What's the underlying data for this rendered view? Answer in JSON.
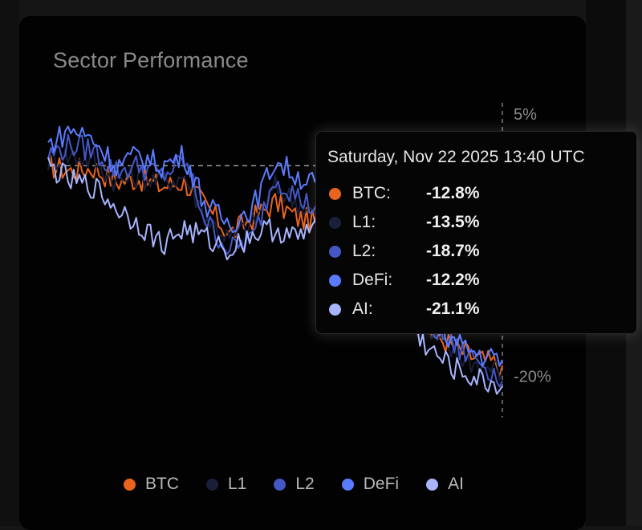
{
  "panel": {
    "title": "Sector Performance"
  },
  "colors": {
    "background": "#020202",
    "axis_text": "#8a8a8a",
    "btc": "#e8641c",
    "l1": "#1a1f3a",
    "l2": "#4457c6",
    "defi": "#5a7bff",
    "ai": "#a8b4ff"
  },
  "legend": [
    {
      "label": "BTC",
      "color": "#e8641c"
    },
    {
      "label": "L1",
      "color": "#1a1f3a"
    },
    {
      "label": "L2",
      "color": "#4457c6"
    },
    {
      "label": "DeFi",
      "color": "#5a7bff"
    },
    {
      "label": "AI",
      "color": "#a8b4ff"
    }
  ],
  "tooltip": {
    "date": "Saturday, Nov 22 2025 13:40 UTC",
    "rows": [
      {
        "name": "BTC:",
        "value": "-12.8%",
        "color": "#e8641c"
      },
      {
        "name": "L1:",
        "value": "-13.5%",
        "color": "#1a1f3a"
      },
      {
        "name": "L2:",
        "value": "-18.7%",
        "color": "#4457c6"
      },
      {
        "name": "DeFi:",
        "value": "-12.2%",
        "color": "#5a7bff"
      },
      {
        "name": "AI:",
        "value": "-21.1%",
        "color": "#a8b4ff"
      }
    ]
  },
  "chart_data": {
    "type": "line",
    "title": "Sector Performance",
    "xlabel": "",
    "ylabel": "",
    "ylim": [
      -24,
      6
    ],
    "y_ticks": [
      {
        "value": 5,
        "label": "5%"
      },
      {
        "value": -20,
        "label": "-20%"
      }
    ],
    "zero_line": true,
    "crosshair": true,
    "legend_position": "bottom",
    "x": [
      0,
      1,
      2,
      3,
      4,
      5,
      6,
      7,
      8,
      9,
      10,
      11,
      12,
      13,
      14,
      15,
      16,
      17,
      18,
      19,
      20
    ],
    "series": [
      {
        "name": "BTC",
        "color": "#e8641c",
        "values": [
          0,
          -0.5,
          -0.2,
          -1.5,
          -1.2,
          -2,
          -1.5,
          -4,
          -6.5,
          -5,
          -3.5,
          -5,
          -5.5,
          -6,
          -7.5,
          -10,
          -14,
          -16,
          -17.5,
          -18.5,
          -19
        ]
      },
      {
        "name": "L1",
        "color": "#1a1f3a",
        "values": [
          0.5,
          1,
          0.5,
          -1.5,
          -1,
          -1.5,
          -1,
          -5,
          -7,
          -5.5,
          -2,
          -3.5,
          -5,
          -6.5,
          -8,
          -10.5,
          -14.5,
          -16.5,
          -18,
          -19,
          -19.5
        ]
      },
      {
        "name": "L2",
        "color": "#4457c6",
        "values": [
          1,
          2,
          1.5,
          -0.5,
          0,
          -1,
          0.5,
          -5.5,
          -8,
          -7,
          -1,
          -3,
          -4.5,
          -6,
          -7,
          -9.5,
          -14,
          -15.5,
          -17.5,
          -18.5,
          -20.5
        ]
      },
      {
        "name": "DeFi",
        "color": "#5a7bff",
        "values": [
          2,
          3.5,
          2.5,
          0,
          1,
          0,
          1,
          -4,
          -5.5,
          -4,
          0.5,
          -1,
          -2,
          -3.5,
          -5,
          -8,
          -13,
          -15,
          -17,
          -18,
          -18.5
        ]
      },
      {
        "name": "AI",
        "color": "#a8b4ff",
        "values": [
          0,
          -1.5,
          -2,
          -4,
          -5.5,
          -7.5,
          -6,
          -7,
          -8,
          -6.5,
          -6,
          -7,
          -5,
          -4.5,
          -6.5,
          -9,
          -15.5,
          -18,
          -19.5,
          -20.5,
          -21
        ]
      }
    ]
  }
}
